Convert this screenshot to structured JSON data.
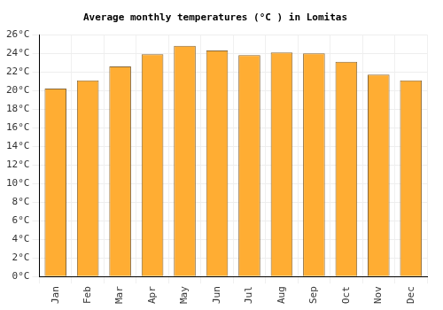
{
  "chart_data": {
    "type": "bar",
    "title": "Average monthly temperatures (°C ) in Lomitas",
    "categories": [
      "Jan",
      "Feb",
      "Mar",
      "Apr",
      "May",
      "Jun",
      "Jul",
      "Aug",
      "Sep",
      "Oct",
      "Nov",
      "Dec"
    ],
    "values": [
      20.2,
      21.1,
      22.6,
      23.9,
      24.8,
      24.3,
      23.8,
      24.1,
      24.0,
      23.1,
      21.7,
      21.1
    ],
    "color": "#ffad33",
    "ylim": [
      0,
      26
    ],
    "yticks": [
      {
        "value": 0,
        "label": "0°C"
      },
      {
        "value": 2,
        "label": "2°C"
      },
      {
        "value": 4,
        "label": "4°C"
      },
      {
        "value": 6,
        "label": "6°C"
      },
      {
        "value": 8,
        "label": "8°C"
      },
      {
        "value": 10,
        "label": "10°C"
      },
      {
        "value": 12,
        "label": "12°C"
      },
      {
        "value": 14,
        "label": "14°C"
      },
      {
        "value": 16,
        "label": "16°C"
      },
      {
        "value": 18,
        "label": "18°C"
      },
      {
        "value": 20,
        "label": "20°C"
      },
      {
        "value": 22,
        "label": "22°C"
      },
      {
        "value": 24,
        "label": "24°C"
      },
      {
        "value": 26,
        "label": "26°C"
      }
    ],
    "grid": true
  }
}
